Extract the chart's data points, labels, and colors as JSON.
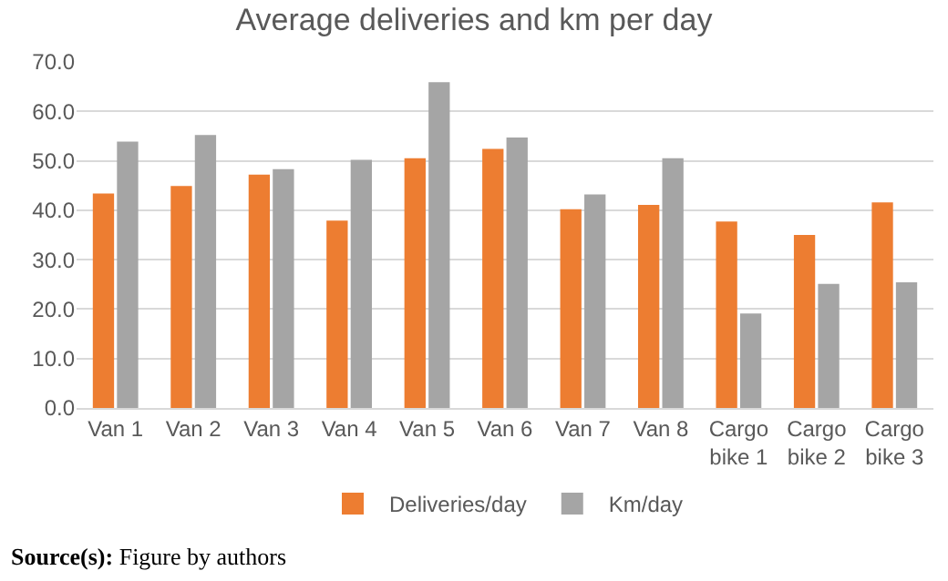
{
  "chart_data": {
    "type": "bar",
    "title": "Average deliveries and km per day",
    "categories": [
      "Van 1",
      "Van 2",
      "Van 3",
      "Van 4",
      "Van 5",
      "Van 6",
      "Van 7",
      "Van 8",
      "Cargo bike 1",
      "Cargo bike 2",
      "Cargo bike 3"
    ],
    "series": [
      {
        "name": "Deliveries/day",
        "color": "#ed7d31",
        "values": [
          43.4,
          44.9,
          47.2,
          37.9,
          50.5,
          52.4,
          40.2,
          41.1,
          37.7,
          35.0,
          41.6
        ]
      },
      {
        "name": "Km/day",
        "color": "#a5a5a5",
        "values": [
          53.9,
          55.2,
          48.3,
          50.2,
          65.9,
          54.7,
          43.2,
          50.5,
          19.1,
          25.1,
          25.4
        ]
      }
    ],
    "ylim": [
      0,
      70
    ],
    "yticks": [
      {
        "value": 0,
        "label": "0.0"
      },
      {
        "value": 10,
        "label": "10.0"
      },
      {
        "value": 20,
        "label": "20.0"
      },
      {
        "value": 30,
        "label": "30.0"
      },
      {
        "value": 40,
        "label": "40.0"
      },
      {
        "value": 50,
        "label": "50.0"
      },
      {
        "value": 60,
        "label": "60.0"
      },
      {
        "value": 70,
        "label": "70.0"
      }
    ],
    "grid": "y",
    "legend": "bottom",
    "annotations": [
      "Source(s): Figure by authors"
    ]
  }
}
